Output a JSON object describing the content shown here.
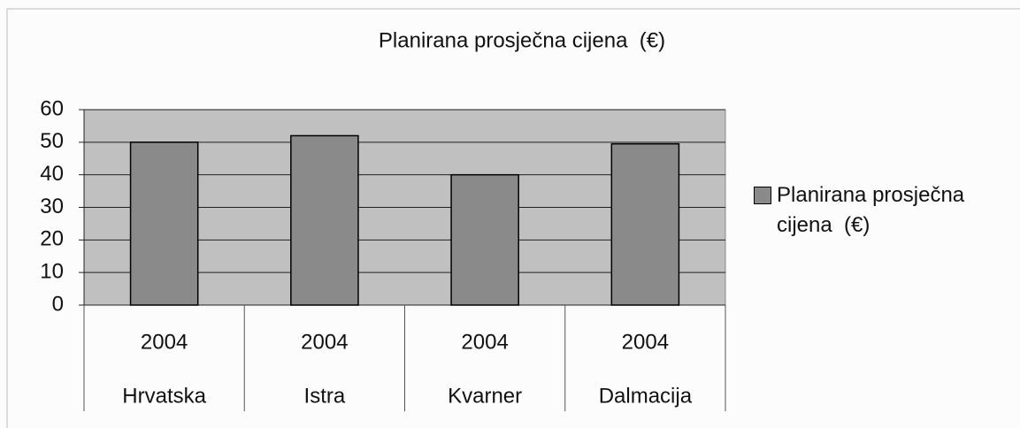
{
  "chart_data": {
    "type": "bar",
    "title": "Planirana prosječna cijena  (€)",
    "categories": [
      "Hrvatska",
      "Istra",
      "Kvarner",
      "Dalmacija"
    ],
    "category_years": [
      "2004",
      "2004",
      "2004",
      "2004"
    ],
    "series": [
      {
        "name": "Planirana prosječna cijena  (€)",
        "color": "#8a8a8a",
        "values": [
          50,
          52,
          40,
          49.5
        ]
      }
    ],
    "ylim": [
      0,
      60
    ],
    "yticks": [
      0,
      10,
      20,
      30,
      40,
      50,
      60
    ],
    "grid": true,
    "legend": "right"
  }
}
